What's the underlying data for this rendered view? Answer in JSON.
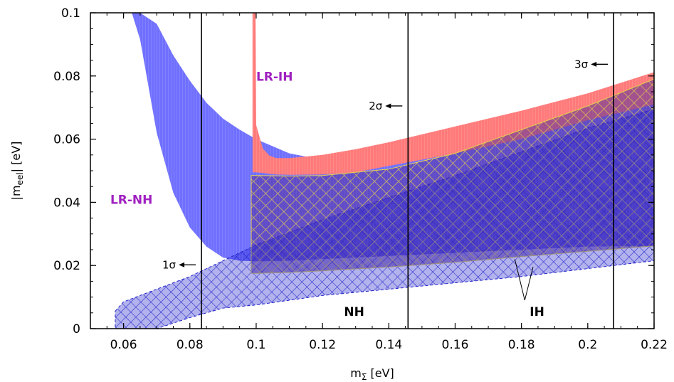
{
  "chart_data": {
    "type": "area",
    "xlabel": "mΣ [eV]",
    "ylabel": "|mₑₑ| [eV]",
    "xlabel_main": "m",
    "xlabel_sub": "Σ",
    "xlabel_unit": " [eV]",
    "ylabel_main": "|m",
    "ylabel_sub": "eel",
    "ylabel_unit": "| [eV]",
    "xlim": [
      0.05,
      0.22
    ],
    "ylim": [
      0,
      0.1
    ],
    "x_ticks": [
      0.06,
      0.08,
      0.1,
      0.12,
      0.14,
      0.16,
      0.18,
      0.2,
      0.22
    ],
    "x_tick_labels": [
      "0.06",
      "0.08",
      "0.1",
      "0.12",
      "0.14",
      "0.16",
      "0.18",
      "0.2",
      "0.22"
    ],
    "y_ticks": [
      0,
      0.02,
      0.04,
      0.06,
      0.08,
      0.1
    ],
    "y_tick_labels": [
      "0",
      "0.02",
      "0.04",
      "0.06",
      "0.08",
      "0.1"
    ],
    "grid": false,
    "colors": {
      "lr_nh": "#7070ff",
      "lr_ih": "#ff7a7a",
      "nh": "#2222cc",
      "ih_hatch": "#e8d24a",
      "overlap": "#55309a",
      "label": "#a020c0",
      "sigma_line": "#000000"
    },
    "series": [
      {
        "name": "LR-NH",
        "x": [
          0.0625,
          0.065,
          0.07,
          0.075,
          0.08,
          0.085,
          0.09,
          0.095,
          0.1,
          0.11,
          0.12,
          0.14,
          0.16,
          0.18,
          0.2,
          0.22
        ],
        "upper": [
          0.1,
          0.1,
          0.0965,
          0.0865,
          0.0785,
          0.0715,
          0.0665,
          0.063,
          0.06,
          0.0555,
          0.0535,
          0.055,
          0.06,
          0.0645,
          0.0685,
          0.0735
        ],
        "lower": [
          0.1,
          0.0915,
          0.062,
          0.043,
          0.032,
          0.026,
          0.0225,
          0.0215,
          0.0213,
          0.0215,
          0.022,
          0.023,
          0.024,
          0.025,
          0.026,
          0.0262
        ]
      },
      {
        "name": "LR-IH",
        "x": [
          0.0989,
          0.0998,
          0.1,
          0.102,
          0.104,
          0.106,
          0.11,
          0.12,
          0.13,
          0.14,
          0.15,
          0.16,
          0.18,
          0.2,
          0.22
        ],
        "upper": [
          0.1,
          0.1,
          0.0645,
          0.057,
          0.0548,
          0.054,
          0.054,
          0.055,
          0.0568,
          0.059,
          0.0615,
          0.064,
          0.069,
          0.0745,
          0.0812
        ],
        "lower": [
          0.0495,
          0.0495,
          0.0495,
          0.0493,
          0.049,
          0.0488,
          0.0487,
          0.0488,
          0.0495,
          0.0515,
          0.0535,
          0.0555,
          0.06,
          0.066,
          0.071
        ]
      },
      {
        "name": "NH",
        "x": [
          0.0575,
          0.06,
          0.07,
          0.08,
          0.09,
          0.1,
          0.12,
          0.14,
          0.16,
          0.18,
          0.2,
          0.22
        ],
        "upper": [
          0.0055,
          0.0085,
          0.0125,
          0.0165,
          0.0215,
          0.0265,
          0.0345,
          0.0415,
          0.0485,
          0.056,
          0.0635,
          0.0695
        ],
        "lower": [
          0.0,
          0.0,
          0.0,
          0.0035,
          0.0065,
          0.0075,
          0.0105,
          0.0125,
          0.0145,
          0.0165,
          0.019,
          0.0215
        ]
      },
      {
        "name": "IH",
        "x": [
          0.0985,
          0.1,
          0.11,
          0.12,
          0.14,
          0.16,
          0.18,
          0.2,
          0.22
        ],
        "upper": [
          0.0485,
          0.0485,
          0.0483,
          0.0485,
          0.0505,
          0.0555,
          0.063,
          0.0705,
          0.079
        ],
        "lower": [
          0.0175,
          0.0175,
          0.0178,
          0.0183,
          0.0195,
          0.021,
          0.0228,
          0.0245,
          0.0262
        ]
      }
    ],
    "sigma_lines": [
      {
        "label": "1σ",
        "x": 0.0835,
        "arrow_y": 0.0202
      },
      {
        "label": "2σ",
        "x": 0.1458,
        "arrow_y": 0.0705
      },
      {
        "label": "3σ",
        "x": 0.2078,
        "arrow_y": 0.0837
      }
    ],
    "annotations": [
      {
        "text": "LR-IH",
        "x": 0.1,
        "y": 0.0785,
        "color": "#a020c0"
      },
      {
        "text": "LR-NH",
        "x": 0.056,
        "y": 0.0395,
        "color": "#a020c0"
      },
      {
        "text": "NH",
        "x": 0.1265,
        "y": 0.004,
        "color": "#000000"
      },
      {
        "text": "IH",
        "x": 0.1825,
        "y": 0.004,
        "color": "#000000"
      }
    ],
    "ih_arrow": {
      "from_x": 0.181,
      "from_y": 0.009,
      "to": [
        [
          0.178,
          0.022
        ],
        [
          0.1835,
          0.0195
        ]
      ]
    }
  }
}
